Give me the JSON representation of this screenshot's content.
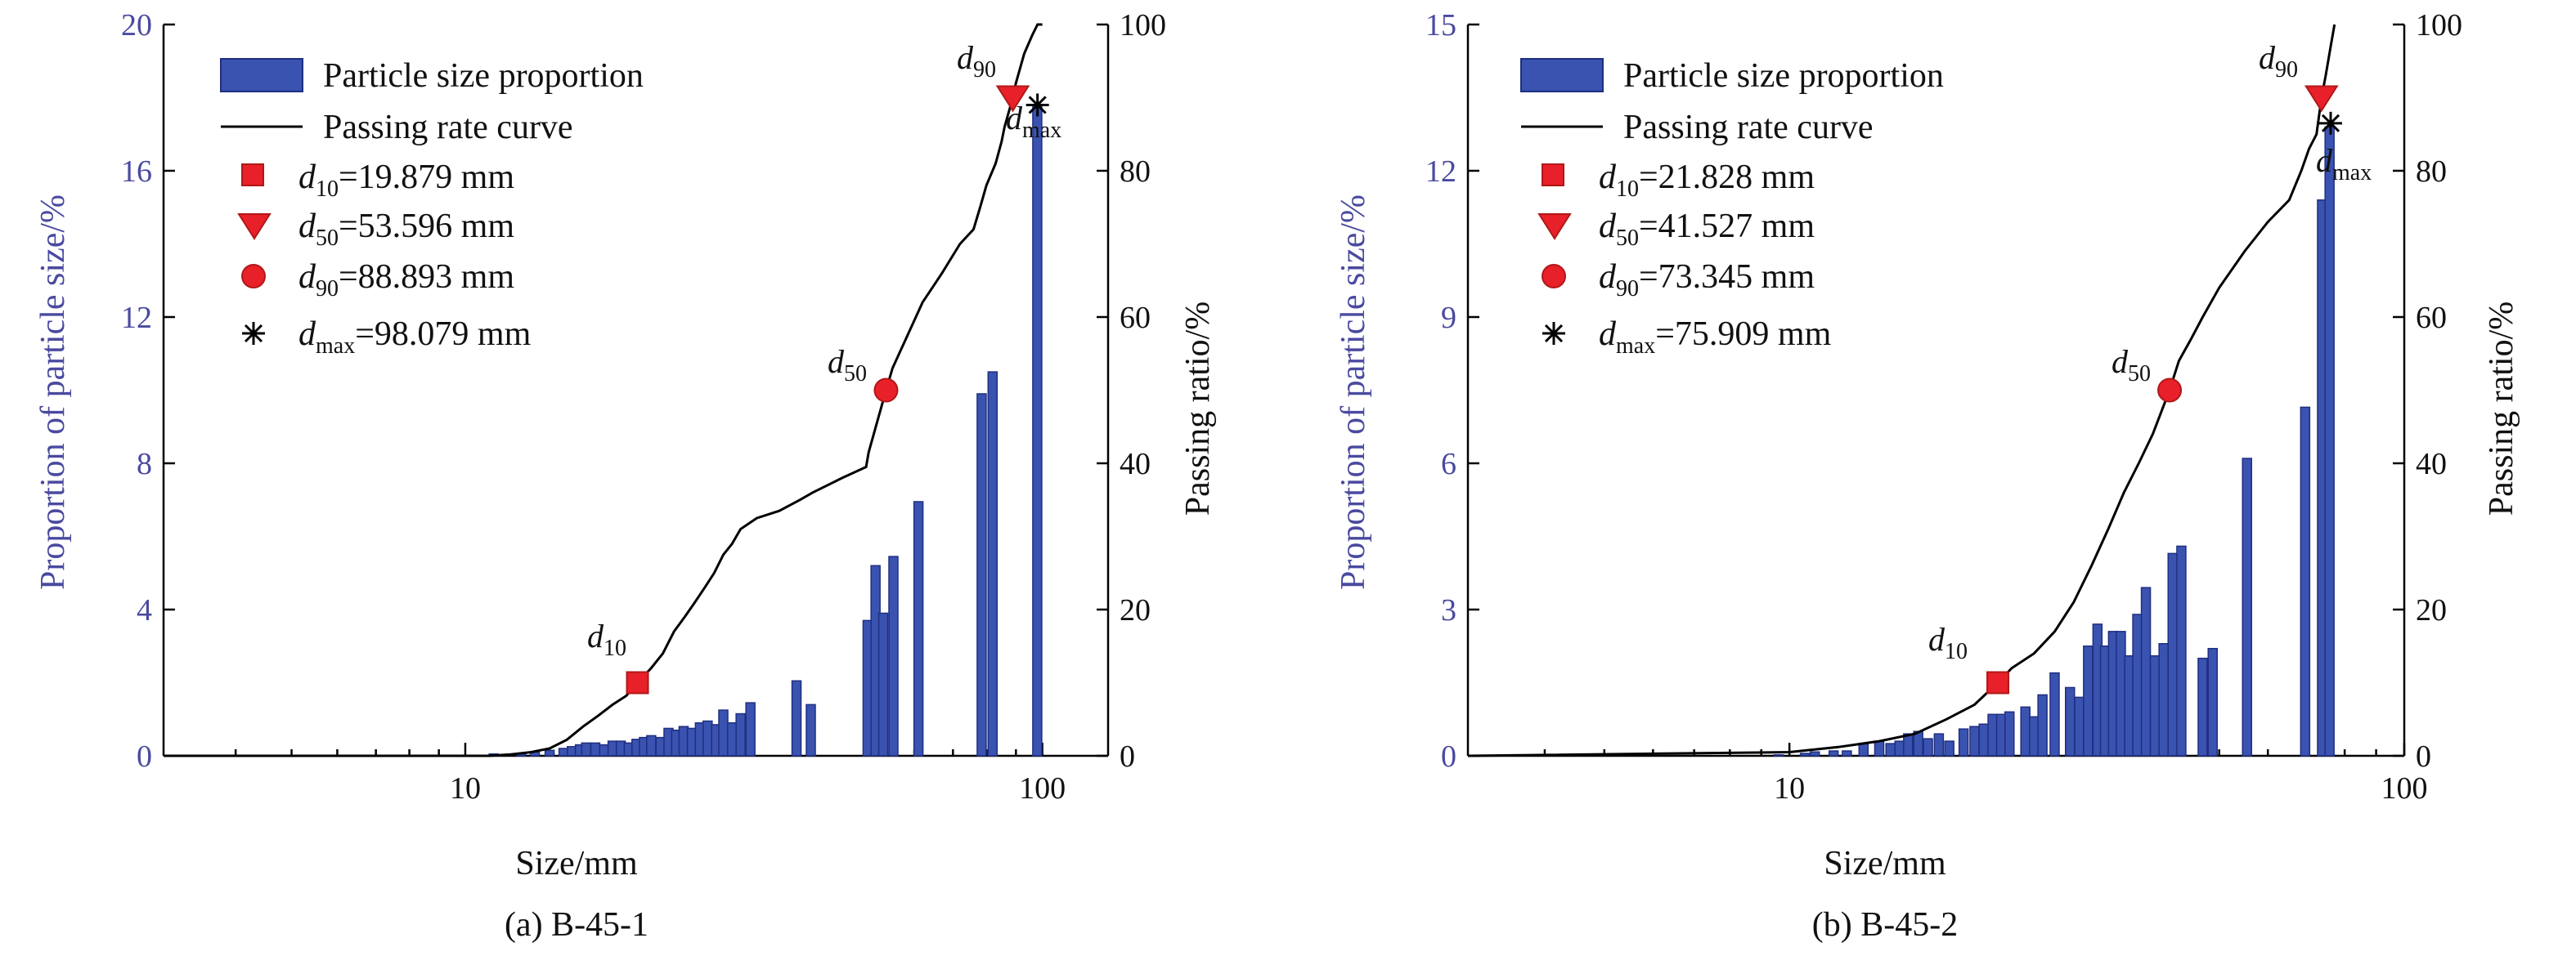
{
  "figure": {
    "panels": [
      {
        "caption": "(a) B-45-1",
        "xlabel": "Size/mm",
        "ylabel_left": "Proportion of particle size/%",
        "ylabel_right": "Passing ratio/%",
        "legend": {
          "bar": "Particle size proportion",
          "curve": "Passing rate curve",
          "d10": "=19.879 mm",
          "d50": "=53.596 mm",
          "d90": "=88.893 mm",
          "dmax": "=98.079 mm"
        }
      },
      {
        "caption": "(b) B-45-2",
        "xlabel": "Size/mm",
        "ylabel_left": "Proportion of particle size/%",
        "ylabel_right": "Passing ratio/%",
        "legend": {
          "bar": "Particle size proportion",
          "curve": "Passing rate curve",
          "d10": "=21.828 mm",
          "d50": "=41.527 mm",
          "d90": "=73.345 mm",
          "dmax": "=75.909 mm"
        }
      }
    ]
  },
  "chart_data": [
    {
      "type": "bar",
      "title": "(a) B-45-1",
      "xlabel": "Size/mm",
      "ylabel": "Proportion of particle size/%",
      "y2label": "Passing ratio/%",
      "xscale": "log",
      "xlim": [
        3,
        130
      ],
      "ylim": [
        0,
        20
      ],
      "y2lim": [
        0,
        100
      ],
      "xticks": [
        10,
        100
      ],
      "yticks": [
        0,
        4,
        8,
        12,
        16,
        20
      ],
      "y2ticks": [
        0,
        20,
        40,
        60,
        80,
        100
      ],
      "legend_position": "top-left",
      "colors": {
        "bar": "#3a53b0",
        "bar_edge": "#1f2f80",
        "curve": "#000000",
        "marker": "#e8202a"
      },
      "series": [
        {
          "name": "Particle size proportion",
          "type": "bar",
          "x": [
            11.2,
            12.5,
            13.2,
            14.0,
            14.8,
            15.3,
            15.8,
            16.2,
            16.8,
            17.4,
            18.0,
            18.6,
            19.2,
            19.8,
            20.4,
            21.0,
            21.8,
            22.5,
            23.2,
            23.9,
            24.7,
            25.5,
            26.3,
            27.2,
            28.0,
            29.0,
            30.0,
            31.2,
            37.5,
            39.7,
            49.8,
            51.4,
            53.0,
            55.2,
            61.0,
            78.5,
            82.0,
            98.0
          ],
          "values": [
            0.05,
            0.05,
            0.1,
            0.15,
            0.2,
            0.25,
            0.3,
            0.35,
            0.35,
            0.3,
            0.4,
            0.4,
            0.35,
            0.45,
            0.5,
            0.55,
            0.5,
            0.75,
            0.7,
            0.8,
            0.75,
            0.9,
            0.95,
            0.85,
            1.25,
            0.9,
            1.15,
            1.45,
            2.05,
            1.4,
            3.7,
            5.2,
            3.9,
            5.45,
            6.95,
            9.9,
            10.5,
            17.8
          ]
        },
        {
          "name": "Passing rate curve",
          "type": "line",
          "x": [
            3,
            11,
            12,
            13,
            14,
            15,
            16,
            17,
            18,
            19,
            19.879,
            21,
            22,
            23,
            24,
            25,
            26,
            27,
            28,
            29,
            30,
            32,
            35,
            38,
            40,
            45,
            49.5,
            50,
            53.596,
            55,
            58,
            62,
            67,
            72,
            76,
            78,
            80,
            83,
            85,
            86,
            88.893,
            90,
            93,
            96,
            98.079,
            100
          ],
          "values": [
            0,
            0,
            0.2,
            0.5,
            1,
            2.2,
            4,
            5.5,
            7,
            8.2,
            10,
            12,
            14,
            17,
            19,
            21,
            23,
            25,
            27.5,
            29,
            31,
            32.5,
            33.5,
            35,
            36,
            38,
            39.5,
            41.5,
            50,
            53,
            57,
            62,
            66,
            70,
            72,
            75,
            78,
            81,
            84,
            86,
            90,
            92,
            96,
            98.5,
            100,
            100
          ]
        },
        {
          "name": "d10=19.879 mm",
          "type": "marker",
          "marker": "square",
          "x": 19.879,
          "y2": 10
        },
        {
          "name": "d50=53.596 mm",
          "type": "marker",
          "marker": "circle",
          "x": 53.596,
          "y2": 50
        },
        {
          "name": "d90=88.893 mm",
          "type": "marker",
          "marker": "triangle-down",
          "x": 88.893,
          "y2": 90
        },
        {
          "name": "dmax=98.079 mm",
          "type": "marker",
          "marker": "star",
          "x": 98.079,
          "y2": 89
        }
      ]
    },
    {
      "type": "bar",
      "title": "(b) B-45-2",
      "xlabel": "Size/mm",
      "ylabel": "Proportion of particle size/%",
      "y2label": "Passing ratio/%",
      "xscale": "log",
      "xlim": [
        3,
        100
      ],
      "ylim": [
        0,
        15
      ],
      "y2lim": [
        0,
        100
      ],
      "xticks": [
        10,
        100
      ],
      "yticks": [
        0,
        3,
        6,
        9,
        12,
        15
      ],
      "y2ticks": [
        0,
        20,
        40,
        60,
        80,
        100
      ],
      "legend_position": "top-left",
      "colors": {
        "bar": "#3a53b0",
        "bar_edge": "#1f2f80",
        "curve": "#000000",
        "marker": "#e8202a"
      },
      "series": [
        {
          "name": "Particle size proportion",
          "type": "bar",
          "x": [
            9.6,
            10.6,
            11.0,
            11.8,
            12.4,
            13.2,
            14.0,
            14.6,
            15.1,
            15.6,
            16.2,
            16.8,
            17.5,
            18.2,
            19.2,
            20.0,
            20.7,
            21.4,
            22.1,
            22.8,
            24.2,
            25.0,
            25.8,
            27.0,
            28.6,
            29.6,
            30.6,
            31.7,
            32.6,
            33.6,
            34.6,
            35.7,
            36.8,
            38.0,
            39.3,
            40.6,
            42.0,
            43.4,
            47.0,
            48.8,
            55.5,
            69.0,
            73.5,
            75.6
          ],
          "values": [
            0.02,
            0.05,
            0.08,
            0.1,
            0.1,
            0.25,
            0.3,
            0.25,
            0.3,
            0.45,
            0.5,
            0.35,
            0.45,
            0.3,
            0.55,
            0.6,
            0.65,
            0.85,
            0.85,
            0.9,
            1.0,
            0.8,
            1.25,
            1.7,
            1.4,
            1.2,
            2.25,
            2.7,
            2.25,
            2.55,
            2.55,
            2.05,
            2.9,
            3.45,
            2.05,
            2.3,
            4.15,
            4.3,
            2.0,
            2.2,
            6.1,
            7.15,
            11.4,
            12.9
          ],
          "note": "bar positions/heights read approximately from figure"
        },
        {
          "name": "Passing rate curve",
          "type": "line",
          "x": [
            3,
            10,
            12,
            14,
            16,
            18,
            20,
            21.828,
            23,
            25,
            27,
            29,
            31,
            33,
            35,
            37,
            39,
            41.527,
            43,
            45,
            47,
            50,
            55,
            60,
            65,
            68,
            70,
            72,
            73.345,
            74.5,
            75.909,
            77
          ],
          "values": [
            0,
            0.5,
            1.2,
            2,
            3,
            5,
            7,
            10,
            12,
            14,
            17,
            21,
            26,
            31,
            36,
            40,
            44,
            50,
            54,
            57,
            60,
            64,
            69,
            73,
            76,
            80,
            83,
            85,
            90,
            93,
            97,
            100
          ]
        },
        {
          "name": "d10=21.828 mm",
          "type": "marker",
          "marker": "square",
          "x": 21.828,
          "y2": 10
        },
        {
          "name": "d50=41.527 mm",
          "type": "marker",
          "marker": "circle",
          "x": 41.527,
          "y2": 50
        },
        {
          "name": "d90=73.345 mm",
          "type": "marker",
          "marker": "triangle-down",
          "x": 73.345,
          "y2": 90
        },
        {
          "name": "dmax=75.909 mm",
          "type": "marker",
          "marker": "star",
          "x": 75.909,
          "y2": 86.5
        }
      ]
    }
  ]
}
